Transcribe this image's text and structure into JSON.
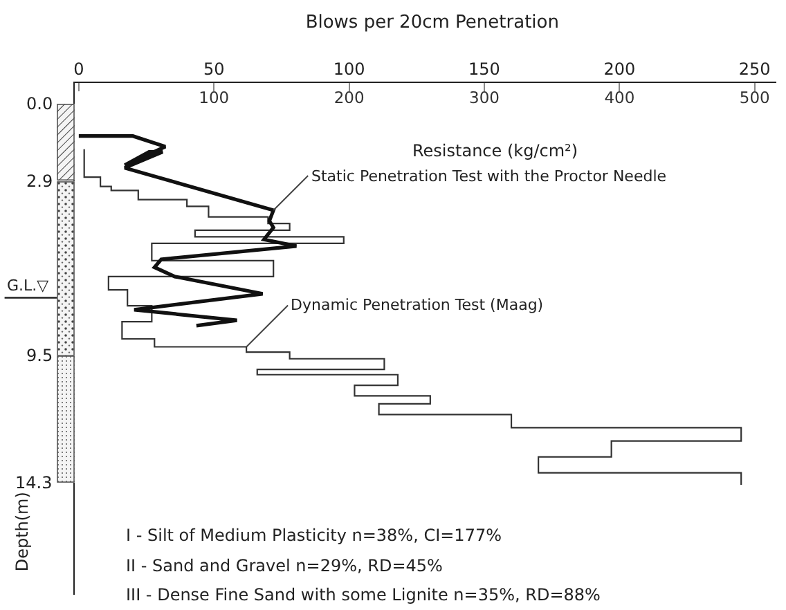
{
  "chart_data": {
    "type": "line",
    "title": "Blows per 20cm Penetration",
    "x2label": "Resistance (kg/cm²)",
    "ylabel": "Depth(m)",
    "xlim": [
      -1.5,
      258
    ],
    "xticks": [
      0,
      50,
      100,
      150,
      200,
      250
    ],
    "x2lim": [
      -3,
      516
    ],
    "x2ticks": [
      {
        "value": 0,
        "label": null
      },
      100,
      200,
      300,
      400,
      500
    ],
    "ylim": [
      18.5,
      -0.8
    ],
    "yticks": [
      {
        "value": 0,
        "label": "0.0"
      },
      2.9,
      9.5,
      14.3
    ],
    "grid": false,
    "legend": false,
    "marker": "none",
    "line_style": "solid",
    "series": [
      {
        "name": "Static Penetration Test with the Proctor Needle",
        "axis": "x2",
        "color": "#111111",
        "x": [
          0,
          40,
          64,
          34,
          52,
          62,
          34,
          144,
          141,
          144,
          137,
          161,
          61,
          56,
          71,
          136,
          41,
          117,
          87
        ],
        "values": [
          1.2,
          1.2,
          1.6,
          2.3,
          1.8,
          1.8,
          2.4,
          4.0,
          4.4,
          4.65,
          5.1,
          5.35,
          5.85,
          6.15,
          6.5,
          7.15,
          7.75,
          8.15,
          8.35
        ]
      },
      {
        "name": "Dynamic Penetration Test (Maag)",
        "color": "#333333",
        "x": [
          2,
          2,
          8,
          8,
          12,
          12,
          22,
          22,
          40,
          40,
          48,
          48,
          70,
          70,
          78,
          78,
          43,
          43,
          98,
          98,
          27,
          27,
          72,
          72,
          11,
          11,
          18,
          18,
          27,
          27,
          16,
          16,
          28,
          28,
          62,
          62,
          78,
          78,
          113,
          113,
          66,
          66,
          118,
          118,
          102,
          102,
          130,
          130,
          111,
          111,
          160,
          160,
          245,
          245,
          197,
          197,
          170,
          170,
          245,
          245
        ],
        "values": [
          1.7,
          2.75,
          2.75,
          3.1,
          3.1,
          3.25,
          3.25,
          3.6,
          3.6,
          3.85,
          3.85,
          4.25,
          4.25,
          4.5,
          4.5,
          4.75,
          4.75,
          5.0,
          5.0,
          5.25,
          5.25,
          5.9,
          5.9,
          6.5,
          6.5,
          7.0,
          7.0,
          7.6,
          7.6,
          8.2,
          8.2,
          8.85,
          8.85,
          9.15,
          9.15,
          9.35,
          9.35,
          9.6,
          9.6,
          10.0,
          10.0,
          10.2,
          10.2,
          10.6,
          10.6,
          11.0,
          11.0,
          11.3,
          11.3,
          11.7,
          11.7,
          12.2,
          12.2,
          12.7,
          12.7,
          13.3,
          13.3,
          13.9,
          13.9,
          14.35
        ]
      }
    ],
    "ref_lines": [
      {
        "axis": "y",
        "value": 7.3,
        "label": "G.L.▽"
      }
    ],
    "annotations": [
      "I - Silt of Medium Plasticity n=38%, CI=177%",
      "II - Sand and Gravel n=29%, RD=45%",
      "III - Dense Fine Sand with some Lignite n=35%, RD=88%"
    ]
  }
}
